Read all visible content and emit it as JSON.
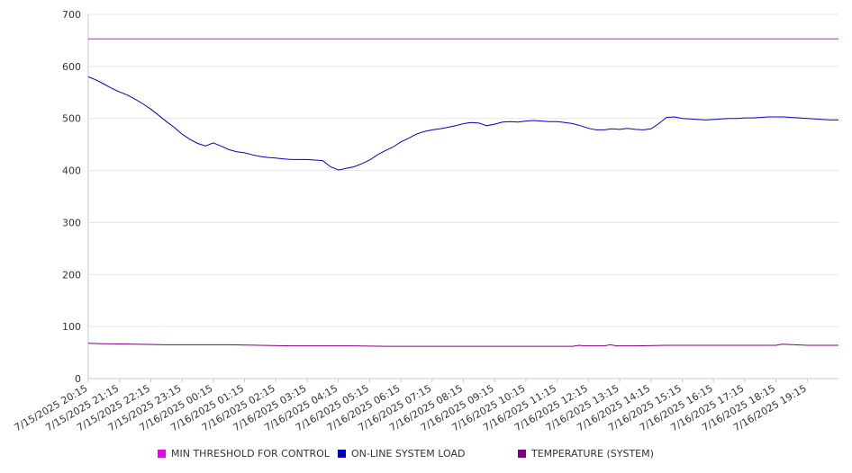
{
  "chart_data": {
    "type": "line",
    "ylim": [
      0,
      700
    ],
    "yticks": [
      0,
      100,
      200,
      300,
      400,
      500,
      600,
      700
    ],
    "grid": true,
    "legend_position": "bottom",
    "x_tick_labels": [
      "7/15/2025 20:15",
      "7/15/2025 21:15",
      "7/15/2025 22:15",
      "7/15/2025 23:15",
      "7/16/2025 00:15",
      "7/16/2025 01:15",
      "7/16/2025 02:15",
      "7/16/2025 03:15",
      "7/16/2025 04:15",
      "7/16/2025 05:15",
      "7/16/2025 06:15",
      "7/16/2025 07:15",
      "7/16/2025 08:15",
      "7/16/2025 09:15",
      "7/16/2025 10:15",
      "7/16/2025 11:15",
      "7/16/2025 12:15",
      "7/16/2025 13:15",
      "7/16/2025 14:15",
      "7/16/2025 15:15",
      "7/16/2025 16:15",
      "7/16/2025 17:15",
      "7/16/2025 18:15",
      "7/16/2025 19:15"
    ],
    "x_range_hours": [
      0,
      24
    ],
    "series": [
      {
        "name": "MIN THRESHOLD FOR CONTROL",
        "color": "#ee00ee",
        "x_hours": [
          0,
          24
        ],
        "values": [
          653,
          653
        ]
      },
      {
        "name": "ON-LINE SYSTEM LOAD",
        "color": "#0000cc",
        "x_hours": [
          0,
          0.25,
          0.5,
          0.75,
          1.0,
          1.25,
          1.5,
          1.75,
          2.0,
          2.25,
          2.5,
          2.75,
          3.0,
          3.25,
          3.5,
          3.75,
          4.0,
          4.25,
          4.5,
          4.75,
          5.0,
          5.25,
          5.5,
          5.75,
          6.0,
          6.25,
          6.5,
          6.75,
          7.0,
          7.25,
          7.5,
          7.75,
          8.0,
          8.1,
          8.25,
          8.5,
          8.75,
          9.0,
          9.25,
          9.5,
          9.75,
          10.0,
          10.25,
          10.5,
          10.75,
          11.0,
          11.25,
          11.5,
          11.75,
          12.0,
          12.25,
          12.5,
          12.75,
          13.0,
          13.25,
          13.5,
          13.75,
          14.0,
          14.25,
          14.5,
          14.75,
          15.0,
          15.25,
          15.5,
          15.75,
          16.0,
          16.25,
          16.5,
          16.75,
          17.0,
          17.25,
          17.5,
          17.75,
          18.0,
          18.25,
          18.5,
          18.75,
          19.0,
          19.25,
          19.5,
          19.75,
          20.0,
          20.25,
          20.5,
          20.75,
          21.0,
          21.25,
          21.5,
          21.75,
          22.0,
          22.25,
          22.5,
          22.75,
          23.0,
          23.25,
          23.5,
          23.75,
          24.0
        ],
        "values": [
          580,
          574,
          566,
          558,
          551,
          545,
          537,
          528,
          518,
          506,
          494,
          483,
          470,
          460,
          452,
          447,
          453,
          447,
          440,
          436,
          434,
          430,
          427,
          425,
          424,
          422,
          421,
          421,
          421,
          420,
          419,
          407,
          401,
          402,
          404,
          407,
          413,
          420,
          430,
          438,
          445,
          455,
          462,
          470,
          475,
          478,
          480,
          483,
          486,
          490,
          492,
          491,
          486,
          489,
          493,
          494,
          493,
          495,
          496,
          495,
          494,
          494,
          492,
          490,
          486,
          481,
          478,
          478,
          480,
          479,
          481,
          479,
          478,
          480,
          490,
          502,
          503,
          500,
          499,
          498,
          497,
          498,
          499,
          500,
          500,
          501,
          501,
          502,
          503,
          503,
          503,
          502,
          501,
          500,
          499,
          498,
          497,
          497
        ]
      },
      {
        "name": "TEMPERATURE (SYSTEM)",
        "color": "#800080",
        "x_hours": [
          0,
          0.5,
          1.5,
          2.5,
          3.5,
          4.5,
          5.5,
          6.5,
          7.5,
          8.5,
          9.5,
          10.5,
          11.5,
          12.5,
          13.5,
          14.5,
          15.5,
          15.7,
          15.9,
          16.5,
          16.7,
          16.9,
          17.5,
          18.5,
          19.5,
          20.5,
          21.5,
          22.0,
          22.2,
          23.0,
          24.0
        ],
        "values": [
          68,
          67,
          66,
          65,
          65,
          65,
          64,
          63,
          63,
          63,
          62,
          62,
          62,
          62,
          62,
          62,
          62,
          64,
          63,
          63,
          65,
          63,
          63,
          64,
          64,
          64,
          64,
          64,
          66,
          64,
          64
        ]
      }
    ]
  }
}
